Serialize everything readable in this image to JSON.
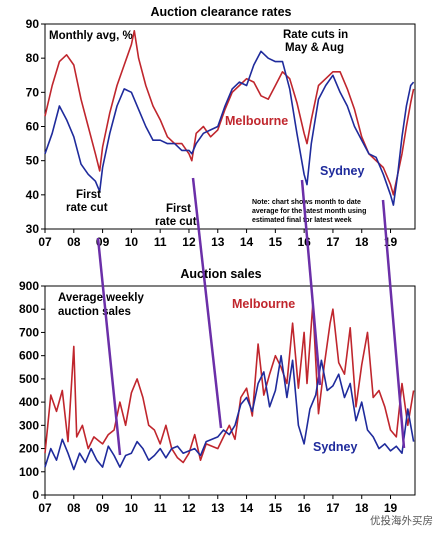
{
  "chart_data": [
    {
      "type": "line",
      "title": "Auction clearance rates",
      "ylabel": "Monthly avg, %",
      "xlabel": "",
      "ylim": [
        30,
        90
      ],
      "y_ticks": [
        30,
        40,
        50,
        60,
        70,
        80,
        90
      ],
      "x_ticks": [
        "07",
        "08",
        "09",
        "10",
        "11",
        "12",
        "13",
        "14",
        "15",
        "16",
        "17",
        "18",
        "19"
      ],
      "xlim": [
        2007.0,
        2019.85
      ],
      "grid": false,
      "colors": {
        "Melbourne": "#c0262d",
        "Sydney": "#1f2b9c"
      },
      "series": [
        {
          "name": "Melbourne",
          "x": [
            2007.0,
            2007.25,
            2007.5,
            2007.75,
            2008.0,
            2008.25,
            2008.5,
            2008.75,
            2008.9,
            2009.0,
            2009.25,
            2009.5,
            2009.75,
            2010.0,
            2010.1,
            2010.25,
            2010.5,
            2010.75,
            2011.0,
            2011.25,
            2011.5,
            2011.75,
            2012.0,
            2012.1,
            2012.25,
            2012.5,
            2012.75,
            2013.0,
            2013.25,
            2013.5,
            2013.75,
            2014.0,
            2014.25,
            2014.5,
            2014.75,
            2015.0,
            2015.25,
            2015.5,
            2015.75,
            2016.0,
            2016.1,
            2016.25,
            2016.5,
            2016.75,
            2017.0,
            2017.25,
            2017.5,
            2017.75,
            2018.0,
            2018.25,
            2018.5,
            2018.75,
            2019.0,
            2019.1,
            2019.25,
            2019.4,
            2019.55,
            2019.7,
            2019.8
          ],
          "values": [
            63,
            72,
            79,
            81,
            78,
            68,
            60,
            52,
            47,
            54,
            64,
            72,
            78,
            84,
            88,
            80,
            72,
            66,
            62,
            57,
            55,
            55,
            52,
            50,
            58,
            60,
            57,
            59,
            65,
            70,
            72,
            74,
            73,
            69,
            68,
            72,
            76,
            74,
            67,
            58,
            55,
            62,
            72,
            74,
            76,
            76,
            71,
            65,
            57,
            52,
            50,
            48,
            43,
            40,
            46,
            52,
            60,
            67,
            71
          ]
        },
        {
          "name": "Sydney",
          "x": [
            2007.0,
            2007.25,
            2007.5,
            2007.75,
            2008.0,
            2008.25,
            2008.5,
            2008.75,
            2008.9,
            2009.0,
            2009.25,
            2009.5,
            2009.75,
            2010.0,
            2010.25,
            2010.5,
            2010.75,
            2011.0,
            2011.25,
            2011.5,
            2011.75,
            2012.0,
            2012.1,
            2012.25,
            2012.5,
            2012.75,
            2013.0,
            2013.25,
            2013.5,
            2013.75,
            2014.0,
            2014.25,
            2014.5,
            2014.75,
            2015.0,
            2015.25,
            2015.5,
            2015.75,
            2016.0,
            2016.1,
            2016.25,
            2016.5,
            2016.75,
            2017.0,
            2017.25,
            2017.5,
            2017.75,
            2018.0,
            2018.25,
            2018.5,
            2018.75,
            2019.0,
            2019.1,
            2019.25,
            2019.4,
            2019.55,
            2019.7,
            2019.8
          ],
          "values": [
            52,
            58,
            66,
            62,
            57,
            49,
            46,
            44,
            41,
            48,
            58,
            66,
            71,
            70,
            65,
            60,
            56,
            56,
            55,
            55,
            53,
            53,
            52,
            55,
            58,
            59,
            60,
            66,
            71,
            73,
            72,
            78,
            82,
            80,
            79,
            79,
            71,
            58,
            46,
            43,
            55,
            68,
            72,
            75,
            70,
            66,
            60,
            56,
            52,
            51,
            46,
            40,
            37,
            46,
            57,
            66,
            72,
            73
          ]
        }
      ],
      "annotations": [
        "Rate cuts in",
        "May & Aug",
        "First",
        "rate cut",
        "First",
        "rate cut",
        "Note: chart shows month to date",
        "average for the latest month using",
        "estimated final for latest week"
      ],
      "series_labels": [
        "Melbourne",
        "Sydney"
      ]
    },
    {
      "type": "line",
      "title": "Auction sales",
      "ylabel": "Average weekly auction sales",
      "xlabel": "",
      "ylim": [
        0,
        900
      ],
      "y_ticks": [
        0,
        100,
        200,
        300,
        400,
        500,
        600,
        700,
        800,
        900
      ],
      "x_ticks": [
        "07",
        "08",
        "09",
        "10",
        "11",
        "12",
        "13",
        "14",
        "15",
        "16",
        "17",
        "18",
        "19"
      ],
      "xlim": [
        2007.0,
        2019.85
      ],
      "grid": false,
      "colors": {
        "Melbourne": "#c0262d",
        "Sydney": "#1f2b9c"
      },
      "series": [
        {
          "name": "Melbourne",
          "x": [
            2007.0,
            2007.2,
            2007.4,
            2007.6,
            2007.8,
            2008.0,
            2008.1,
            2008.3,
            2008.5,
            2008.7,
            2008.9,
            2009.0,
            2009.2,
            2009.4,
            2009.6,
            2009.8,
            2010.0,
            2010.2,
            2010.4,
            2010.6,
            2010.8,
            2011.0,
            2011.2,
            2011.4,
            2011.6,
            2011.8,
            2012.0,
            2012.2,
            2012.4,
            2012.6,
            2012.8,
            2013.0,
            2013.2,
            2013.4,
            2013.6,
            2013.8,
            2014.0,
            2014.2,
            2014.4,
            2014.6,
            2014.8,
            2015.0,
            2015.2,
            2015.4,
            2015.6,
            2015.8,
            2016.0,
            2016.1,
            2016.3,
            2016.5,
            2016.7,
            2016.9,
            2017.0,
            2017.2,
            2017.4,
            2017.6,
            2017.8,
            2018.0,
            2018.2,
            2018.4,
            2018.6,
            2018.8,
            2019.0,
            2019.2,
            2019.4,
            2019.6,
            2019.8
          ],
          "values": [
            180,
            430,
            360,
            450,
            230,
            640,
            250,
            300,
            200,
            250,
            230,
            220,
            260,
            280,
            400,
            300,
            440,
            500,
            420,
            300,
            280,
            220,
            300,
            200,
            160,
            140,
            180,
            260,
            150,
            220,
            210,
            200,
            250,
            300,
            240,
            420,
            460,
            340,
            650,
            430,
            520,
            600,
            550,
            480,
            740,
            460,
            700,
            480,
            820,
            350,
            560,
            740,
            800,
            570,
            520,
            720,
            380,
            560,
            700,
            420,
            450,
            380,
            280,
            250,
            480,
            300,
            450
          ]
        },
        {
          "name": "Sydney",
          "x": [
            2007.0,
            2007.2,
            2007.4,
            2007.6,
            2007.8,
            2008.0,
            2008.2,
            2008.4,
            2008.6,
            2008.8,
            2009.0,
            2009.2,
            2009.4,
            2009.6,
            2009.8,
            2010.0,
            2010.2,
            2010.4,
            2010.6,
            2010.8,
            2011.0,
            2011.2,
            2011.4,
            2011.6,
            2011.8,
            2012.0,
            2012.2,
            2012.4,
            2012.6,
            2012.8,
            2013.0,
            2013.2,
            2013.4,
            2013.6,
            2013.8,
            2014.0,
            2014.2,
            2014.4,
            2014.6,
            2014.8,
            2015.0,
            2015.2,
            2015.4,
            2015.6,
            2015.8,
            2016.0,
            2016.2,
            2016.4,
            2016.6,
            2016.8,
            2017.0,
            2017.2,
            2017.4,
            2017.6,
            2017.8,
            2018.0,
            2018.2,
            2018.4,
            2018.6,
            2018.8,
            2019.0,
            2019.2,
            2019.4,
            2019.6,
            2019.8
          ],
          "values": [
            120,
            200,
            150,
            240,
            180,
            110,
            180,
            140,
            200,
            150,
            120,
            210,
            170,
            120,
            170,
            180,
            230,
            200,
            150,
            170,
            200,
            160,
            200,
            210,
            180,
            190,
            200,
            170,
            230,
            240,
            250,
            280,
            260,
            300,
            390,
            420,
            360,
            480,
            530,
            380,
            450,
            600,
            420,
            580,
            300,
            220,
            370,
            430,
            580,
            450,
            470,
            520,
            420,
            480,
            320,
            400,
            280,
            250,
            200,
            220,
            190,
            210,
            180,
            370,
            230
          ]
        }
      ],
      "series_labels": [
        "Melbourne",
        "Sydney"
      ]
    }
  ],
  "watermark": "优投海外买房"
}
